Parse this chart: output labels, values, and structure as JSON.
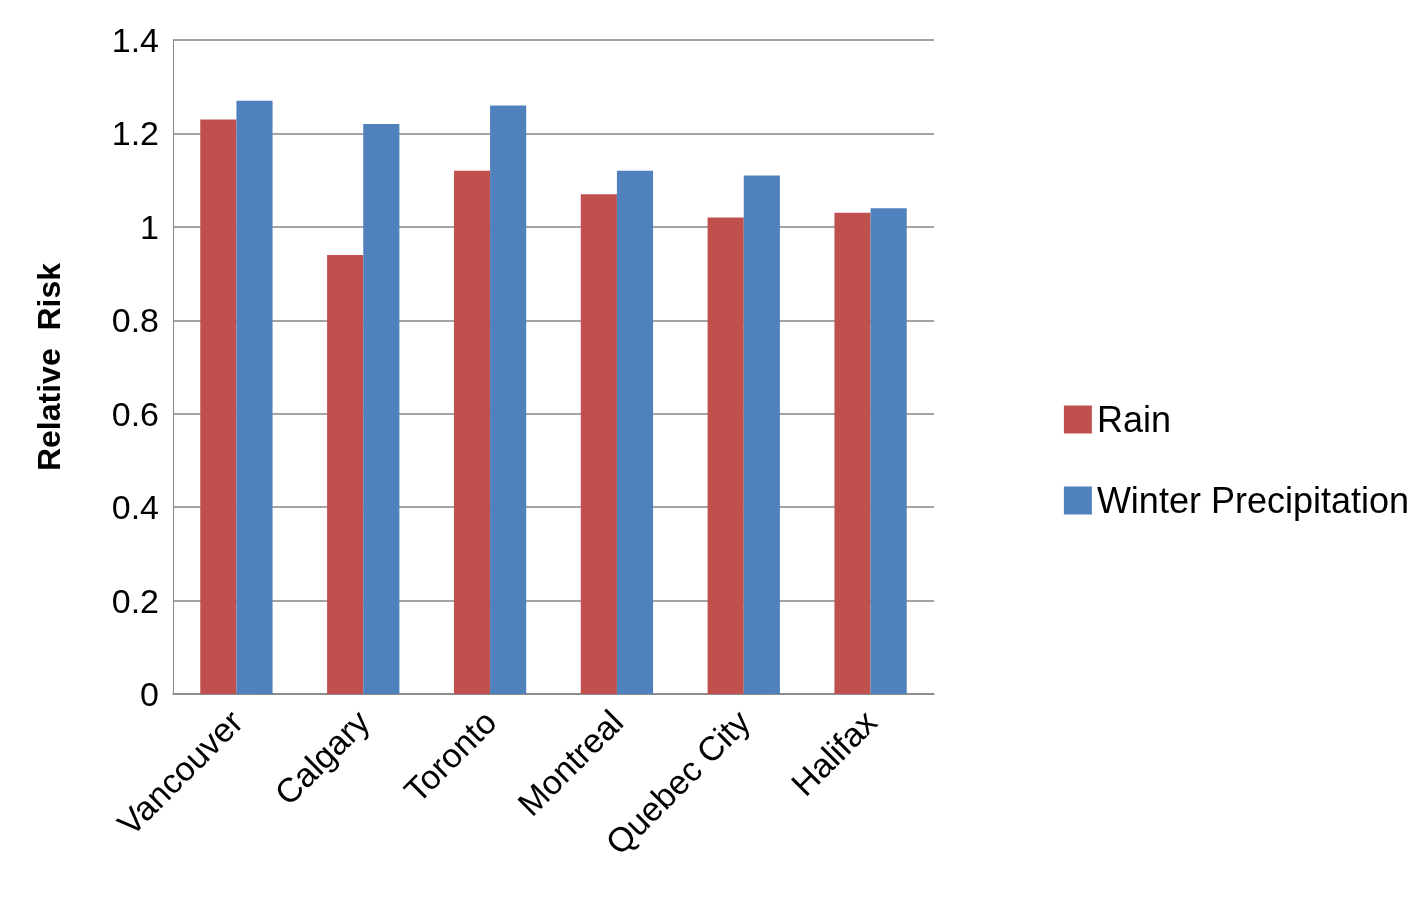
{
  "chart_data": {
    "type": "bar",
    "ylabel": "Relative  Risk",
    "categories": [
      "Vancouver",
      "Calgary",
      "Toronto",
      "Montreal",
      "Quebec City",
      "Halifax"
    ],
    "series": [
      {
        "name": "Rain",
        "color": "#c0504d",
        "values": [
          1.23,
          0.94,
          1.12,
          1.07,
          1.02,
          1.03
        ]
      },
      {
        "name": "Winter Precipitation",
        "color": "#4f81bd",
        "values": [
          1.27,
          1.22,
          1.26,
          1.12,
          1.11,
          1.04
        ]
      }
    ],
    "ylim": [
      0,
      1.4
    ],
    "yticks": [
      0,
      0.2,
      0.4,
      0.6,
      0.8,
      1,
      1.2,
      1.4
    ],
    "grid": "y",
    "legend": "right"
  }
}
